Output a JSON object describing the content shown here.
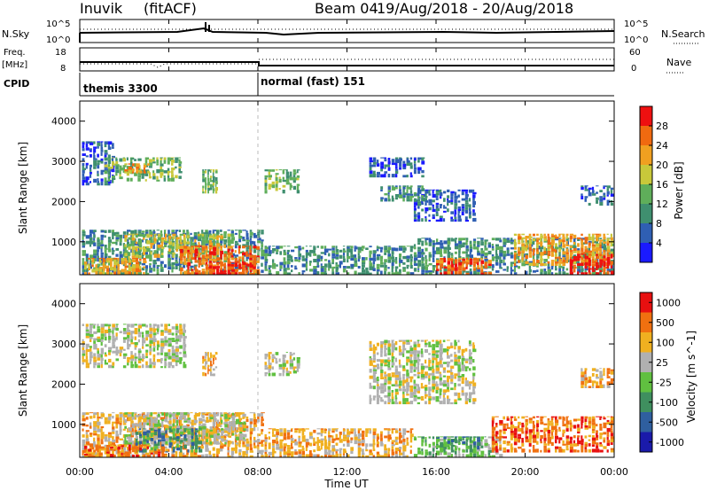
{
  "header": {
    "station": "Inuvik",
    "mode": "(fitACF)",
    "beam": "Beam 04",
    "date_range": "19/Aug/2018 - 20/Aug/2018"
  },
  "left_labels": {
    "nsky": "N.Sky",
    "freq": "Freq.",
    "mhz": "[MHz]",
    "cpid": "CPID"
  },
  "right_labels": {
    "nsearch": "N.Search",
    "nave": "Nave"
  },
  "nsky_axis": {
    "top": "10^5",
    "bottom": "10^0"
  },
  "freq_axis": {
    "top": "18",
    "bottom": "8"
  },
  "nave_axis": {
    "top": "60",
    "bottom": "0"
  },
  "cpid": [
    {
      "label": "themis 3300",
      "start_hour": 0
    },
    {
      "label": "normal (fast) 151",
      "start_hour": 8
    }
  ],
  "x_axis": {
    "label": "Time UT",
    "ticks": [
      "00:00",
      "04:00",
      "08:00",
      "12:00",
      "16:00",
      "20:00",
      "00:00"
    ]
  },
  "y_axis": {
    "label": "Slant Range [km]",
    "ticks": [
      "1000",
      "2000",
      "3000",
      "4000"
    ]
  },
  "power_scale": {
    "label": "Power [dB]",
    "ticks": [
      "4",
      "8",
      "12",
      "16",
      "20",
      "24",
      "28"
    ],
    "colors": [
      "#1a1aff",
      "#2f5fb3",
      "#3f8f6f",
      "#5fae5a",
      "#c8c83a",
      "#f0a020",
      "#f06a10",
      "#ee1010"
    ]
  },
  "velocity_scale": {
    "label": "Velocity [m s^-1]",
    "ticks": [
      "1000",
      "500",
      "100",
      "25",
      "-25",
      "-100",
      "-500",
      "-1000"
    ],
    "colors": [
      "#1a1aaa",
      "#2f5f9f",
      "#3f8f5f",
      "#60c040",
      "#b0b0b0",
      "#f0b020",
      "#f07010",
      "#e81010"
    ]
  },
  "chart_data": {
    "type": "heatmap",
    "x_range_hours": [
      0,
      24
    ],
    "y_range_km": [
      180,
      4500
    ],
    "power_regions": [
      {
        "t0": 0.1,
        "t1": 1.6,
        "r0": 2400,
        "r1": 3500,
        "level": 1
      },
      {
        "t0": 1.1,
        "t1": 4.6,
        "r0": 2500,
        "r1": 3100,
        "level": 3
      },
      {
        "t0": 2.0,
        "t1": 3.2,
        "r0": 2700,
        "r1": 2950,
        "level": 5
      },
      {
        "t0": 5.5,
        "t1": 6.2,
        "r0": 2200,
        "r1": 2800,
        "level": 3
      },
      {
        "t0": 0.1,
        "t1": 8.3,
        "r0": 180,
        "r1": 1300,
        "level": 2
      },
      {
        "t0": 2.0,
        "t1": 6.8,
        "r0": 600,
        "r1": 1200,
        "level": 4
      },
      {
        "t0": 0.2,
        "t1": 3.0,
        "r0": 180,
        "r1": 600,
        "level": 5
      },
      {
        "t0": 4.5,
        "t1": 8.1,
        "r0": 180,
        "r1": 900,
        "level": 6
      },
      {
        "t0": 5.8,
        "t1": 7.8,
        "r0": 180,
        "r1": 500,
        "level": 7
      },
      {
        "t0": 8.3,
        "t1": 9.9,
        "r0": 2200,
        "r1": 2800,
        "level": 3
      },
      {
        "t0": 8.3,
        "t1": 15.0,
        "r0": 180,
        "r1": 900,
        "level": 2
      },
      {
        "t0": 13.0,
        "t1": 15.5,
        "r0": 2600,
        "r1": 3100,
        "level": 1
      },
      {
        "t0": 15.0,
        "t1": 17.8,
        "r0": 1500,
        "r1": 2300,
        "level": 1
      },
      {
        "t0": 13.5,
        "t1": 15.5,
        "r0": 2000,
        "r1": 2400,
        "level": 2
      },
      {
        "t0": 15.0,
        "t1": 24.0,
        "r0": 180,
        "r1": 1100,
        "level": 2
      },
      {
        "t0": 16.0,
        "t1": 18.5,
        "r0": 180,
        "r1": 600,
        "level": 6
      },
      {
        "t0": 19.5,
        "t1": 24.0,
        "r0": 400,
        "r1": 1200,
        "level": 5
      },
      {
        "t0": 22.0,
        "t1": 24.0,
        "r0": 180,
        "r1": 700,
        "level": 7
      },
      {
        "t0": 22.5,
        "t1": 24.0,
        "r0": 1900,
        "r1": 2400,
        "level": 1
      }
    ],
    "velocity_regions": [
      {
        "t0": 0.1,
        "t1": 4.8,
        "r0": 2400,
        "r1": 3500,
        "level": 4
      },
      {
        "t0": 5.5,
        "t1": 6.2,
        "r0": 2200,
        "r1": 2800,
        "level": 5
      },
      {
        "t0": 0.1,
        "t1": 8.3,
        "r0": 180,
        "r1": 1300,
        "level": 5
      },
      {
        "t0": 2.0,
        "t1": 7.5,
        "r0": 500,
        "r1": 1300,
        "level": 4
      },
      {
        "t0": 2.5,
        "t1": 5.5,
        "r0": 300,
        "r1": 900,
        "level": 2
      },
      {
        "t0": 0.2,
        "t1": 4.0,
        "r0": 180,
        "r1": 500,
        "level": 6
      },
      {
        "t0": 8.3,
        "t1": 9.9,
        "r0": 2200,
        "r1": 2800,
        "level": 4
      },
      {
        "t0": 8.3,
        "t1": 15.0,
        "r0": 180,
        "r1": 900,
        "level": 5
      },
      {
        "t0": 13.0,
        "t1": 17.8,
        "r0": 1500,
        "r1": 3100,
        "level": 4
      },
      {
        "t0": 15.0,
        "t1": 19.0,
        "r0": 180,
        "r1": 700,
        "level": 3
      },
      {
        "t0": 16.0,
        "t1": 18.0,
        "r0": 300,
        "r1": 700,
        "level": 2
      },
      {
        "t0": 18.5,
        "t1": 24.0,
        "r0": 300,
        "r1": 1200,
        "level": 6
      },
      {
        "t0": 22.5,
        "t1": 24.0,
        "r0": 1900,
        "r1": 2400,
        "level": 5
      }
    ]
  }
}
